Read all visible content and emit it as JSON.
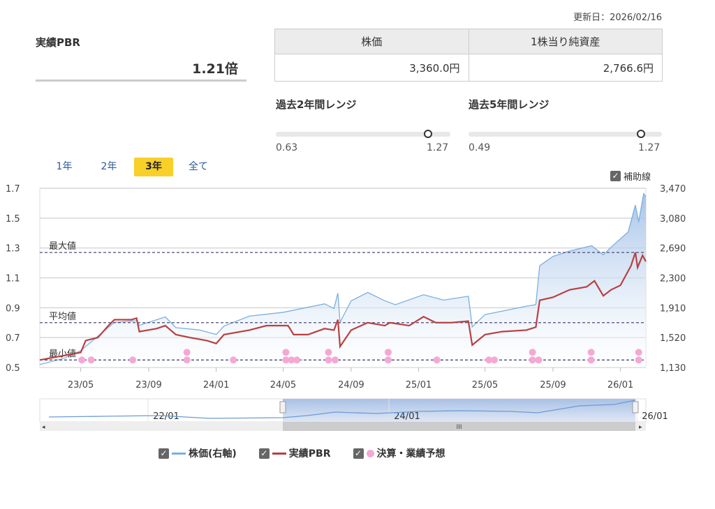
{
  "header": {
    "updated": "更新日：2026/02/16"
  },
  "pbr": {
    "label": "実績PBR",
    "value": "1.21倍"
  },
  "table": {
    "headers": [
      "株価",
      "1株当り純資産"
    ],
    "values": [
      "3,360.0円",
      "2,766.6円"
    ]
  },
  "ranges": [
    {
      "title": "過去2年間レンジ",
      "min": "0.63",
      "max": "1.27",
      "min_value": 0.63,
      "max_value": 1.27,
      "current": 1.21
    },
    {
      "title": "過去5年間レンジ",
      "min": "0.49",
      "max": "1.27",
      "min_value": 0.49,
      "max_value": 1.27,
      "current": 1.21
    }
  ],
  "periods": [
    {
      "label": "1年",
      "active": false
    },
    {
      "label": "2年",
      "active": false
    },
    {
      "label": "3年",
      "active": true
    },
    {
      "label": "全て",
      "active": false
    }
  ],
  "aux_lines": {
    "label": "補助線",
    "checked": true
  },
  "legend": [
    {
      "label": "株価(右軸)",
      "color": "#7ab0e0",
      "checked": true
    },
    {
      "label": "実績PBR",
      "color": "#b94040",
      "checked": true
    },
    {
      "label": "決算・業績予想",
      "color": "#f6a8d4",
      "checked": true
    }
  ],
  "chart_data": {
    "type": "line",
    "x_range": [
      "2023-02-16",
      "2026-02-16"
    ],
    "x_ticks": [
      [
        "2023-05-01",
        "23/05"
      ],
      [
        "2023-09-01",
        "23/09"
      ],
      [
        "2024-01-01",
        "24/01"
      ],
      [
        "2024-05-01",
        "24/05"
      ],
      [
        "2024-09-01",
        "24/09"
      ],
      [
        "2025-01-01",
        "25/01"
      ],
      [
        "2025-05-01",
        "25/05"
      ],
      [
        "2025-09-01",
        "25/09"
      ],
      [
        "2026-01-01",
        "26/01"
      ]
    ],
    "y_left": {
      "range": [
        0.5,
        1.7
      ],
      "ticks": [
        "0.5",
        "0.7",
        "0.9",
        "1.1",
        "1.3",
        "1.5",
        "1.7"
      ]
    },
    "y_right": {
      "range": [
        1130,
        3470
      ],
      "ticks": [
        "1,130",
        "1,520",
        "1,910",
        "2,300",
        "2,690",
        "3,080",
        "3,470"
      ]
    },
    "reference_lines": [
      {
        "label": "最大値",
        "value": 1.27
      },
      {
        "label": "平均値",
        "value": 0.8
      },
      {
        "label": "最小値",
        "value": 0.55
      }
    ],
    "series": [
      {
        "name": "実績PBR",
        "axis": "left",
        "color": "#b94040",
        "points": [
          [
            "2023-02-16",
            0.55
          ],
          [
            "2023-04-01",
            0.58
          ],
          [
            "2023-05-01",
            0.6
          ],
          [
            "2023-05-10",
            0.68
          ],
          [
            "2023-06-01",
            0.7
          ],
          [
            "2023-06-20",
            0.78
          ],
          [
            "2023-07-01",
            0.82
          ],
          [
            "2023-08-01",
            0.82
          ],
          [
            "2023-08-10",
            0.83
          ],
          [
            "2023-08-15",
            0.74
          ],
          [
            "2023-09-15",
            0.76
          ],
          [
            "2023-10-01",
            0.78
          ],
          [
            "2023-10-20",
            0.72
          ],
          [
            "2023-11-15",
            0.7
          ],
          [
            "2023-12-15",
            0.68
          ],
          [
            "2024-01-01",
            0.66
          ],
          [
            "2024-01-15",
            0.72
          ],
          [
            "2024-03-01",
            0.75
          ],
          [
            "2024-04-01",
            0.78
          ],
          [
            "2024-05-10",
            0.78
          ],
          [
            "2024-05-20",
            0.72
          ],
          [
            "2024-06-15",
            0.72
          ],
          [
            "2024-07-15",
            0.76
          ],
          [
            "2024-08-01",
            0.75
          ],
          [
            "2024-08-08",
            0.82
          ],
          [
            "2024-08-12",
            0.64
          ],
          [
            "2024-09-01",
            0.75
          ],
          [
            "2024-10-01",
            0.8
          ],
          [
            "2024-11-01",
            0.78
          ],
          [
            "2024-11-10",
            0.8
          ],
          [
            "2024-12-15",
            0.78
          ],
          [
            "2025-01-10",
            0.84
          ],
          [
            "2025-02-01",
            0.8
          ],
          [
            "2025-03-01",
            0.8
          ],
          [
            "2025-04-01",
            0.81
          ],
          [
            "2025-04-08",
            0.65
          ],
          [
            "2025-05-01",
            0.72
          ],
          [
            "2025-06-01",
            0.74
          ],
          [
            "2025-07-15",
            0.75
          ],
          [
            "2025-08-01",
            0.77
          ],
          [
            "2025-08-08",
            0.95
          ],
          [
            "2025-09-01",
            0.97
          ],
          [
            "2025-10-01",
            1.02
          ],
          [
            "2025-11-01",
            1.04
          ],
          [
            "2025-11-15",
            1.08
          ],
          [
            "2025-12-01",
            0.98
          ],
          [
            "2025-12-15",
            1.02
          ],
          [
            "2026-01-01",
            1.05
          ],
          [
            "2026-01-20",
            1.18
          ],
          [
            "2026-01-28",
            1.27
          ],
          [
            "2026-02-01",
            1.17
          ],
          [
            "2026-02-10",
            1.25
          ],
          [
            "2026-02-16",
            1.21
          ]
        ]
      },
      {
        "name": "株価(右軸)",
        "axis": "right",
        "color": "#7ab0e0",
        "points": [
          [
            "2023-02-16",
            1168
          ],
          [
            "2023-04-01",
            1250
          ],
          [
            "2023-05-01",
            1350
          ],
          [
            "2023-07-01",
            1720
          ],
          [
            "2023-08-10",
            1740
          ],
          [
            "2023-08-15",
            1680
          ],
          [
            "2023-10-01",
            1790
          ],
          [
            "2023-10-20",
            1650
          ],
          [
            "2023-12-01",
            1620
          ],
          [
            "2024-01-01",
            1560
          ],
          [
            "2024-01-15",
            1670
          ],
          [
            "2024-03-01",
            1800
          ],
          [
            "2024-05-01",
            1850
          ],
          [
            "2024-07-15",
            1960
          ],
          [
            "2024-08-01",
            1900
          ],
          [
            "2024-08-08",
            2100
          ],
          [
            "2024-08-12",
            1720
          ],
          [
            "2024-09-01",
            2000
          ],
          [
            "2024-10-01",
            2110
          ],
          [
            "2024-11-01",
            2000
          ],
          [
            "2024-11-20",
            1950
          ],
          [
            "2025-01-10",
            2080
          ],
          [
            "2025-02-15",
            2010
          ],
          [
            "2025-04-01",
            2060
          ],
          [
            "2025-04-08",
            1660
          ],
          [
            "2025-05-01",
            1820
          ],
          [
            "2025-07-15",
            1930
          ],
          [
            "2025-08-01",
            1950
          ],
          [
            "2025-08-08",
            2460
          ],
          [
            "2025-09-01",
            2580
          ],
          [
            "2025-10-01",
            2650
          ],
          [
            "2025-11-10",
            2720
          ],
          [
            "2025-12-01",
            2600
          ],
          [
            "2025-12-15",
            2700
          ],
          [
            "2026-01-15",
            2900
          ],
          [
            "2026-01-28",
            3250
          ],
          [
            "2026-02-03",
            3030
          ],
          [
            "2026-02-12",
            3400
          ],
          [
            "2026-02-16",
            3360
          ]
        ]
      }
    ],
    "events": {
      "name": "決算・業績予想",
      "color": "#f6a8d4",
      "points": [
        [
          "2023-05-03",
          1
        ],
        [
          "2023-05-20",
          1
        ],
        [
          "2023-08-03",
          1
        ],
        [
          "2023-11-09",
          2
        ],
        [
          "2024-02-01",
          1
        ],
        [
          "2024-05-06",
          2
        ],
        [
          "2024-05-16",
          1
        ],
        [
          "2024-05-26",
          1
        ],
        [
          "2024-07-22",
          2
        ],
        [
          "2024-08-03",
          1
        ],
        [
          "2024-11-07",
          2
        ],
        [
          "2025-02-03",
          1
        ],
        [
          "2025-05-08",
          1
        ],
        [
          "2025-05-18",
          1
        ],
        [
          "2025-07-26",
          2
        ],
        [
          "2025-08-06",
          1
        ],
        [
          "2025-11-09",
          2
        ],
        [
          "2026-02-03",
          2
        ]
      ]
    },
    "navigator": {
      "labels": [
        "22/01",
        "24/01",
        "26/01"
      ],
      "selected_range": [
        "2023-02-16",
        "2026-02-16"
      ]
    }
  }
}
